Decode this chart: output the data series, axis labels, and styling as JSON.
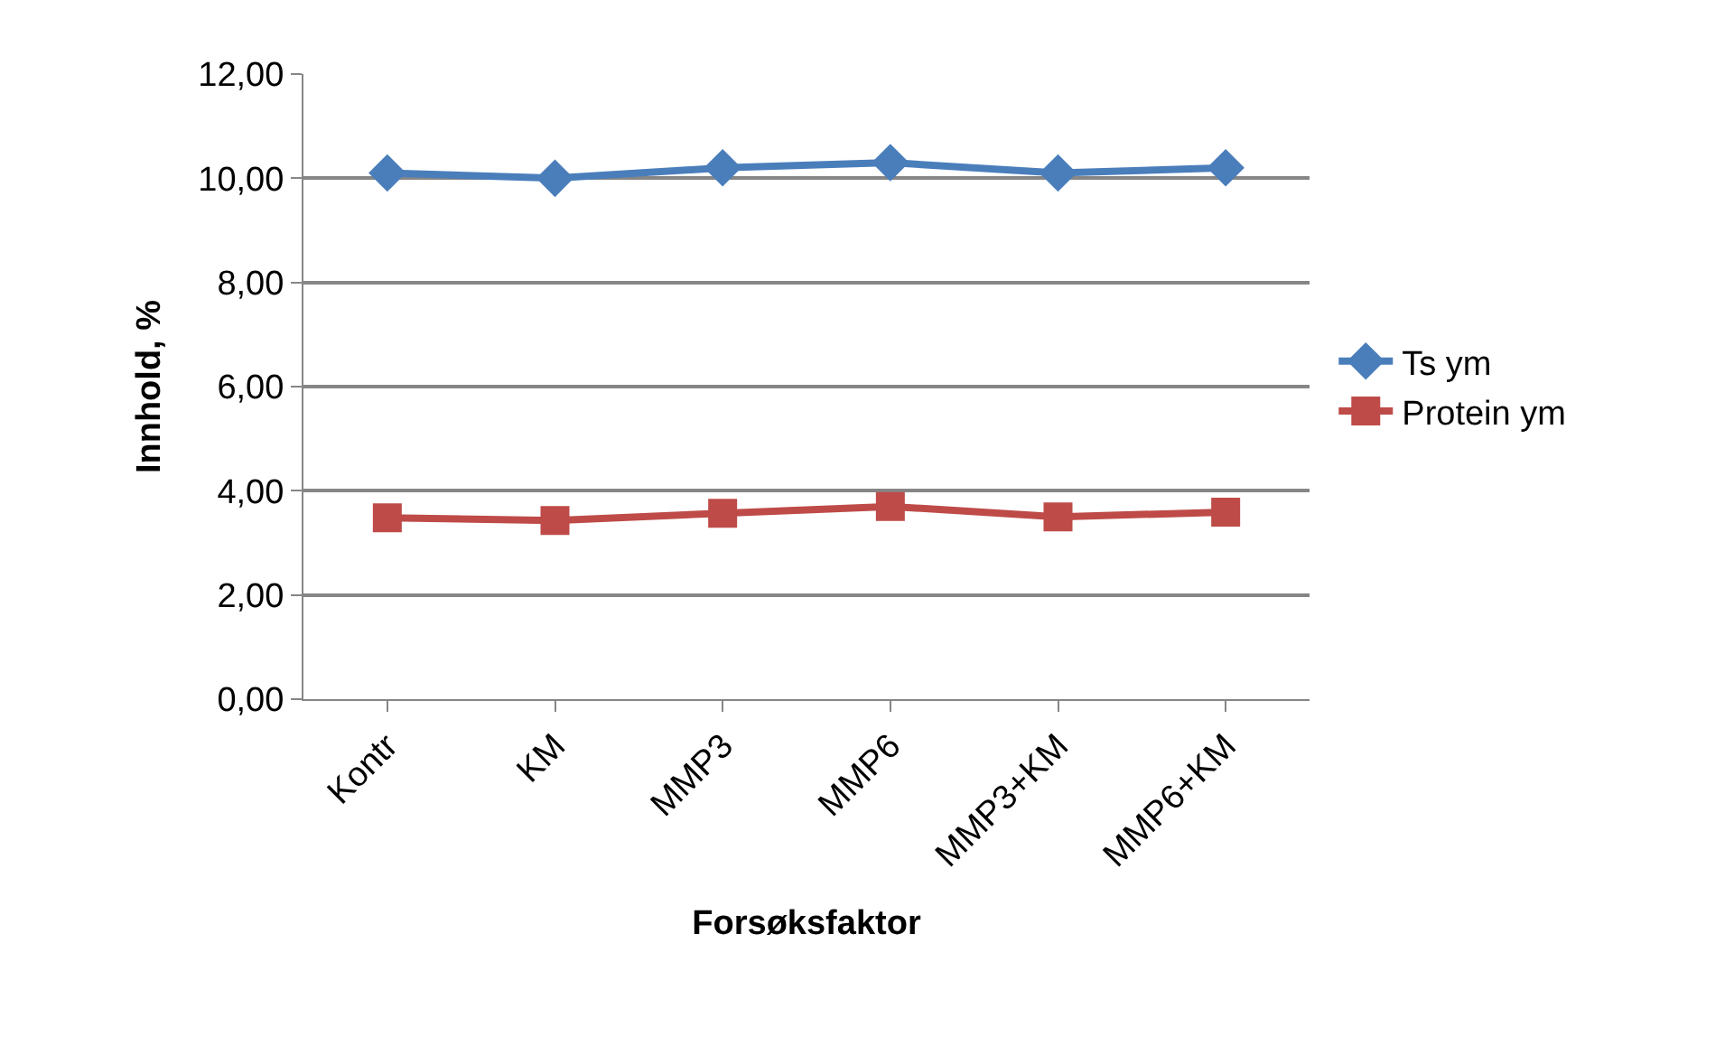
{
  "chart_data": {
    "type": "line",
    "xlabel": "Forsøksfaktor",
    "ylabel": "Innhold, %",
    "categories": [
      "Kontr",
      "KM",
      "MMP3",
      "MMP6",
      "MMP3+KM",
      "MMP6+KM"
    ],
    "series": [
      {
        "name": "Ts ym",
        "color": "#4a7ebb",
        "marker": "diamond",
        "values": [
          10.1,
          10.0,
          10.2,
          10.3,
          10.1,
          10.2
        ]
      },
      {
        "name": "Protein ym",
        "color": "#be4b48",
        "marker": "square",
        "values": [
          3.48,
          3.43,
          3.57,
          3.7,
          3.5,
          3.59
        ]
      }
    ],
    "ylim": [
      0,
      12
    ],
    "yticks": [
      {
        "value": 0,
        "label": "0,00"
      },
      {
        "value": 2,
        "label": "2,00"
      },
      {
        "value": 4,
        "label": "4,00"
      },
      {
        "value": 6,
        "label": "6,00"
      },
      {
        "value": 8,
        "label": "8,00"
      },
      {
        "value": 10,
        "label": "10,00"
      },
      {
        "value": 12,
        "label": "12,00"
      }
    ],
    "grid": "y",
    "legend": "right",
    "line_style": "solid"
  }
}
